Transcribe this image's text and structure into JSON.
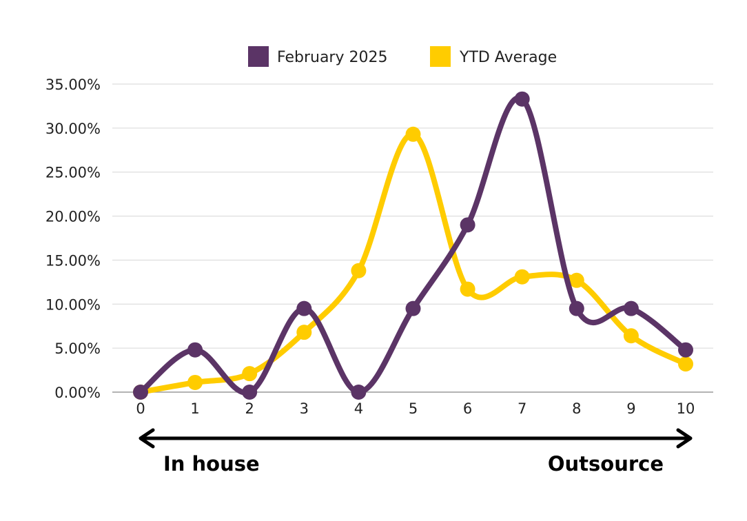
{
  "chart_data": {
    "type": "line",
    "x": [
      0,
      1,
      2,
      3,
      4,
      5,
      6,
      7,
      8,
      9,
      10
    ],
    "x_tick_labels": [
      "0",
      "1",
      "2",
      "3",
      "4",
      "5",
      "6",
      "7",
      "8",
      "9",
      "10"
    ],
    "y_tick_labels": [
      "0.00%",
      "5.00%",
      "10.00%",
      "15.00%",
      "20.00%",
      "25.00%",
      "30.00%",
      "35.00%"
    ],
    "ylim": [
      0,
      35
    ],
    "grid": true,
    "smooth": true,
    "legend_position": "top-center",
    "series": [
      {
        "name": "February 2025",
        "color": "#5b3466",
        "values": [
          0.0,
          4.8,
          0.0,
          9.5,
          0.0,
          9.5,
          19.0,
          33.3,
          9.5,
          9.5,
          4.8
        ]
      },
      {
        "name": "YTD Average",
        "color": "#ffcc00",
        "values": [
          0.0,
          1.1,
          2.1,
          6.8,
          13.8,
          29.3,
          11.7,
          13.1,
          12.7,
          6.4,
          3.2
        ]
      }
    ],
    "annotations": {
      "left_label": "In house",
      "right_label": "Outsource",
      "arrow": "double-headed"
    }
  }
}
